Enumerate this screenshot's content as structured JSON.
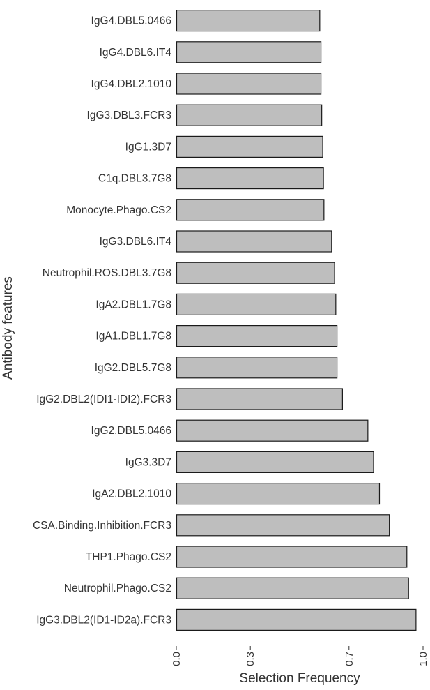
{
  "chart_data": {
    "type": "bar",
    "orientation": "horizontal",
    "xlabel": "Selection Frequency",
    "ylabel": "Antibody features",
    "xlim": [
      0,
      1
    ],
    "x_ticks": [
      {
        "value": 0.0,
        "label": "0.0"
      },
      {
        "value": 0.3,
        "label": "0.3"
      },
      {
        "value": 0.7,
        "label": "0.7"
      },
      {
        "value": 1.0,
        "label": "1.0"
      }
    ],
    "grid": false,
    "bar_color": "#bebebe",
    "bar_outline": "#1a1a1a",
    "categories": [
      "IgG4.DBL5.0466",
      "IgG4.DBL6.IT4",
      "IgG4.DBL2.1010",
      "IgG3.DBL3.FCR3",
      "IgG1.3D7",
      "C1q.DBL3.7G8",
      "Monocyte.Phago.CS2",
      "IgG3.DBL6.IT4",
      "Neutrophil.ROS.DBL3.7G8",
      "IgA2.DBL1.7G8",
      "IgA1.DBL1.7G8",
      "IgG2.DBL5.7G8",
      "IgG2.DBL2(IDI1-IDI2).FCR3",
      "IgG2.DBL5.0466",
      "IgG3.3D7",
      "IgA2.DBL2.1010",
      "CSA.Binding.Inhibition.FCR3",
      "THP1.Phago.CS2",
      "Neutrophil.Phago.CS2",
      "IgG3.DBL2(ID1-ID2a).FCR3"
    ],
    "values": [
      0.58,
      0.585,
      0.585,
      0.588,
      0.592,
      0.595,
      0.597,
      0.628,
      0.64,
      0.645,
      0.65,
      0.65,
      0.672,
      0.775,
      0.798,
      0.822,
      0.862,
      0.933,
      0.94,
      0.97
    ]
  }
}
